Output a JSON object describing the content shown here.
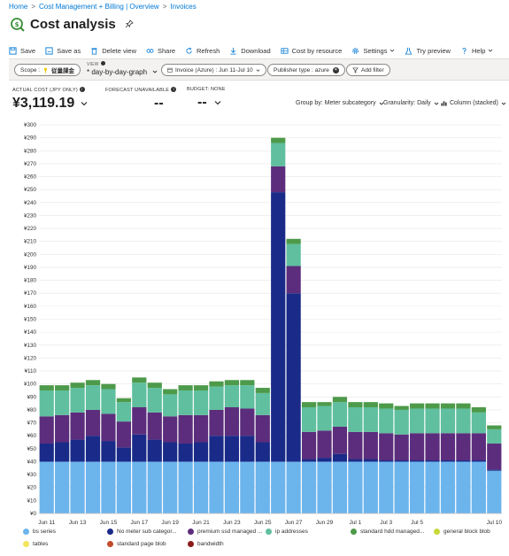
{
  "breadcrumb": [
    "Home",
    "Cost Management + Billing | Overview",
    "Invoices"
  ],
  "page_title": "Cost analysis",
  "toolbar": {
    "save": "Save",
    "save_as": "Save as",
    "delete_view": "Delete view",
    "share": "Share",
    "refresh": "Refresh",
    "download": "Download",
    "cost_by_resource": "Cost by resource",
    "settings": "Settings",
    "try_preview": "Try preview",
    "help": "Help"
  },
  "filters": {
    "scope_label": "Scope :",
    "scope_value": "従量課金",
    "view_label": "VIEW",
    "view_value": "* day-by-day-graph",
    "invoice": "Invoice (Azure) : Jun 11-Jul 10",
    "publisher": "Publisher type : azure",
    "add_filter": "Add filter"
  },
  "kpis": {
    "actual_cost_label": "ACTUAL COST (JPY ONLY)",
    "actual_cost_value": "¥3,119.19",
    "forecast_label": "FORECAST UNAVAILABLE",
    "forecast_value": "--",
    "budget_label": "BUDGET: NONE",
    "budget_value": "--"
  },
  "chart_controls": {
    "group_by": "Group by: Meter subcategory",
    "granularity": "Granularity: Daily",
    "chart_type": "Column (stacked)"
  },
  "colors": {
    "bs_series": "#6cb4ec",
    "no_meter": "#1a2a88",
    "premium_ssd": "#5c2d7c",
    "ip_addresses": "#5fbf9e",
    "standard_hdd": "#4d9a4a",
    "general_block_blob": "#c7d83a",
    "tables": "#f2e45c",
    "standard_page_blob": "#c24b2c",
    "bandwidth": "#8b1c1c",
    "accent": "#0078d4"
  },
  "legend": [
    {
      "label": "bs series",
      "color": "#6cb4ec"
    },
    {
      "label": "No meter sub categor...",
      "color": "#1a2a88"
    },
    {
      "label": "premium ssd managed ...",
      "color": "#5c2d7c"
    },
    {
      "label": "ip addresses",
      "color": "#5fbf9e"
    },
    {
      "label": "standard hdd managed...",
      "color": "#4d9a4a"
    },
    {
      "label": "general block blob",
      "color": "#c7d83a"
    },
    {
      "label": "tables",
      "color": "#f2e45c"
    },
    {
      "label": "standard page blob",
      "color": "#c24b2c"
    },
    {
      "label": "bandwidth",
      "color": "#8b1c1c"
    }
  ],
  "chart_data": {
    "type": "bar",
    "stacked": true,
    "title": "",
    "xlabel": "",
    "ylabel": "",
    "ylim": [
      0,
      300
    ],
    "y_ticks": [
      0,
      10,
      20,
      30,
      40,
      50,
      60,
      70,
      80,
      90,
      100,
      110,
      120,
      130,
      140,
      150,
      160,
      170,
      180,
      190,
      200,
      210,
      220,
      230,
      240,
      250,
      260,
      270,
      280,
      290,
      300
    ],
    "y_tick_prefix": "¥",
    "grid": true,
    "legend_position": "bottom",
    "categories": [
      "Jun 11",
      "Jun 12",
      "Jun 13",
      "Jun 14",
      "Jun 15",
      "Jun 16",
      "Jun 17",
      "Jun 18",
      "Jun 19",
      "Jun 20",
      "Jun 21",
      "Jun 22",
      "Jun 23",
      "Jun 24",
      "Jun 25",
      "Jun 26",
      "Jun 27",
      "Jun 28",
      "Jun 29",
      "Jun 30",
      "Jul 1",
      "Jul 2",
      "Jul 3",
      "Jul 4",
      "Jul 5",
      "Jul 6",
      "Jul 7",
      "Jul 8",
      "Jul 9",
      "Jul 10"
    ],
    "x_tick_labels": [
      "Jun 11",
      "Jun 13",
      "Jun 15",
      "Jun 17",
      "Jun 19",
      "Jun 21",
      "Jun 23",
      "Jun 25",
      "Jun 27",
      "Jun 29",
      "Jul 1",
      "Jul 3",
      "Jul 5",
      "Jul 10"
    ],
    "series": [
      {
        "name": "bs series",
        "values": [
          40,
          40,
          40,
          40,
          40,
          40,
          40,
          40,
          40,
          40,
          40,
          40,
          40,
          40,
          40,
          40,
          40,
          40,
          40,
          40,
          40,
          40,
          40,
          40,
          40,
          40,
          40,
          40,
          40,
          33
        ]
      },
      {
        "name": "No meter sub categor...",
        "values": [
          14,
          15,
          17,
          20,
          16,
          11,
          21,
          17,
          15,
          14,
          15,
          20,
          20,
          20,
          15,
          208,
          130,
          2,
          3,
          6,
          2,
          2,
          1,
          1,
          1,
          1,
          1,
          1,
          1,
          1
        ]
      },
      {
        "name": "premium ssd managed ...",
        "values": [
          21,
          21,
          21,
          20,
          21,
          20,
          21,
          21,
          20,
          22,
          21,
          20,
          22,
          21,
          21,
          20,
          21,
          21,
          21,
          21,
          21,
          21,
          21,
          20,
          21,
          21,
          21,
          21,
          21,
          20
        ]
      },
      {
        "name": "ip addresses",
        "values": [
          20,
          19,
          19,
          19,
          19,
          15,
          19,
          19,
          17,
          19,
          19,
          18,
          17,
          18,
          17,
          18,
          17,
          19,
          19,
          19,
          19,
          19,
          19,
          19,
          19,
          19,
          19,
          19,
          16,
          11
        ]
      },
      {
        "name": "standard hdd managed...",
        "values": [
          4,
          4,
          4,
          4,
          4,
          3,
          4,
          4,
          4,
          4,
          4,
          4,
          4,
          4,
          4,
          4,
          4,
          4,
          3,
          4,
          4,
          4,
          4,
          3,
          4,
          4,
          4,
          4,
          4,
          3
        ]
      }
    ]
  }
}
